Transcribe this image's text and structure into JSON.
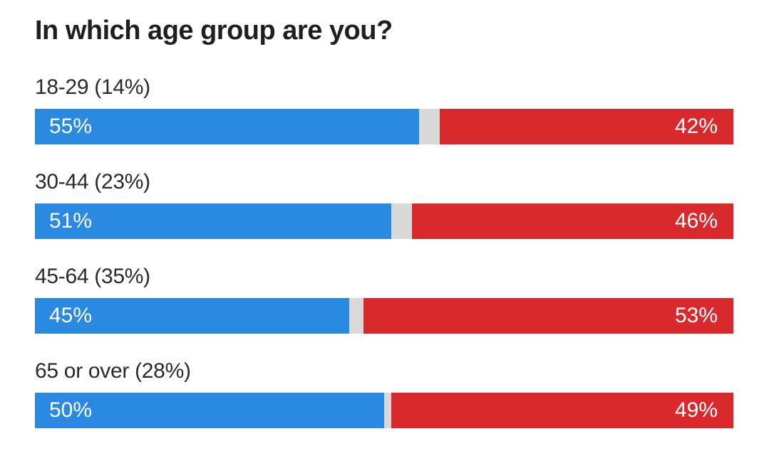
{
  "chart_data": {
    "type": "bar",
    "title": "In which age group are you?",
    "orientation": "horizontal-stacked",
    "categories": [
      "18-29 (14%)",
      "30-44 (23%)",
      "45-64 (35%)",
      "65 or over (28%)"
    ],
    "series": [
      {
        "values": [
          55,
          51,
          45,
          50
        ],
        "labels": [
          "55%",
          "51%",
          "45%",
          "50%"
        ],
        "color": "#2a89e0"
      },
      {
        "values": [
          42,
          46,
          53,
          49
        ],
        "labels": [
          "42%",
          "46%",
          "53%",
          "49%"
        ],
        "color": "#d9292c"
      }
    ],
    "remainder_color": "#d9d9d9",
    "xlim": [
      0,
      100
    ],
    "grid": false,
    "legend": "none"
  }
}
